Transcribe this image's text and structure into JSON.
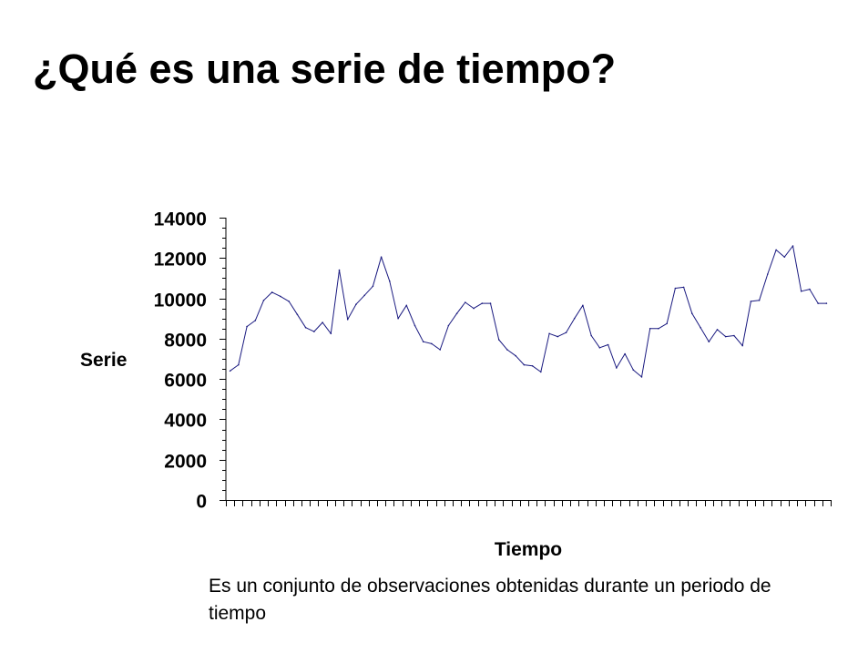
{
  "slide": {
    "title": "¿Qué es una serie de tiempo?",
    "caption": "Es un conjunto de observaciones obtenidas durante un periodo de tiempo"
  },
  "colors": {
    "line": "#1a1a80",
    "axis": "#000000"
  },
  "chart_data": {
    "type": "line",
    "title": "",
    "xlabel": "Tiempo",
    "ylabel": "Serie",
    "ylim": [
      0,
      14000
    ],
    "yticks": [
      0,
      2000,
      4000,
      6000,
      8000,
      10000,
      12000,
      14000
    ],
    "grid": false,
    "legend": "none",
    "series": [
      {
        "values": [
          6400,
          6700,
          8600,
          8900,
          9900,
          10300,
          10100,
          9850,
          9200,
          8550,
          8350,
          8800,
          8250,
          11400,
          8950,
          9700,
          10150,
          10600,
          12050,
          10850,
          9000,
          9650,
          8650,
          7850,
          7750,
          7450,
          8650,
          9250,
          9800,
          9500,
          9750,
          9750,
          7950,
          7450,
          7150,
          6700,
          6650,
          6350,
          8250,
          8100,
          8300,
          9000,
          9650,
          8150,
          7550,
          7700,
          6550,
          7250,
          6450,
          6100,
          8500,
          8500,
          8750,
          10500,
          10550,
          9250,
          8550,
          7850,
          8450,
          8100,
          8150,
          7650,
          9850,
          9900,
          11200,
          12400,
          12050,
          12600,
          10350,
          10450,
          9750,
          9750
        ]
      }
    ]
  }
}
